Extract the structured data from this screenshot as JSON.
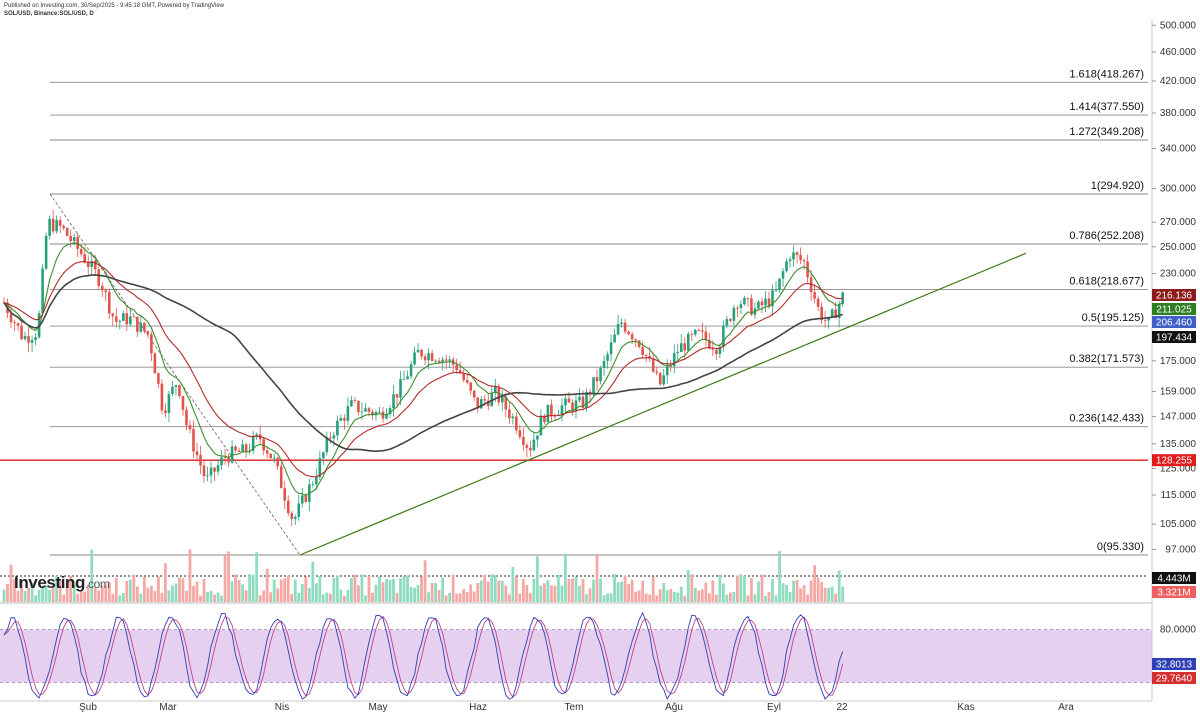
{
  "header": {
    "published": "Published on Investing.com, 30/Sep/2025 - 9:45:18 GMT, Powered by TradingView",
    "symbol": "SOL/USD, Binance:SOL/USD, D"
  },
  "logo": {
    "main": "Investing",
    "suffix": ".com"
  },
  "chart_data": {
    "type": "candlestick",
    "title": "",
    "price_axis": {
      "scale": "log",
      "range": [
        90,
        520
      ],
      "ticks": [
        {
          "value": 500,
          "label": "500.000"
        },
        {
          "value": 460,
          "label": "460.000"
        },
        {
          "value": 420,
          "label": "420.000"
        },
        {
          "value": 380,
          "label": "380.000"
        },
        {
          "value": 340,
          "label": "340.000"
        },
        {
          "value": 300,
          "label": "300.000"
        },
        {
          "value": 270,
          "label": "270.000"
        },
        {
          "value": 250,
          "label": "250.000"
        },
        {
          "value": 230,
          "label": "230.000"
        },
        {
          "value": 175,
          "label": "175.000"
        },
        {
          "value": 159,
          "label": "159.000"
        },
        {
          "value": 147,
          "label": "147.000"
        },
        {
          "value": 135,
          "label": "135.000"
        },
        {
          "value": 125,
          "label": "125.000"
        },
        {
          "value": 115,
          "label": "115.000"
        },
        {
          "value": 105,
          "label": "105.000"
        },
        {
          "value": 97,
          "label": "97.000"
        }
      ]
    },
    "time_axis": {
      "labels": [
        "Şub",
        "Mar",
        "Nis",
        "May",
        "Haz",
        "Tem",
        "Ağu",
        "Eyl",
        "22",
        "Kas",
        "Ara"
      ],
      "grid": false
    },
    "fibonacci_levels": [
      {
        "ratio": 1.618,
        "value": 418.267,
        "label": "1.618(418.267)"
      },
      {
        "ratio": 1.414,
        "value": 377.55,
        "label": "1.414(377.550)"
      },
      {
        "ratio": 1.272,
        "value": 349.208,
        "label": "1.272(349.208)"
      },
      {
        "ratio": 1,
        "value": 294.92,
        "label": "1(294.920)"
      },
      {
        "ratio": 0.786,
        "value": 252.208,
        "label": "0.786(252.208)"
      },
      {
        "ratio": 0.618,
        "value": 218.677,
        "label": "0.618(218.677)"
      },
      {
        "ratio": 0.5,
        "value": 195.125,
        "label": "0.5(195.125)"
      },
      {
        "ratio": 0.382,
        "value": 171.573,
        "label": "0.382(171.573)"
      },
      {
        "ratio": 0.236,
        "value": 142.433,
        "label": "0.236(142.433)"
      },
      {
        "ratio": 0,
        "value": 95.33,
        "label": "0(95.330)"
      }
    ],
    "horizontal_line": {
      "value": 128.255,
      "color": "#e01b1b"
    },
    "trendline": {
      "color": "#3e7a16",
      "from_value": 95.33,
      "to_value": 245
    },
    "price_tags": [
      {
        "value": 216.136,
        "label": "216.136",
        "color": "#8b1a1a"
      },
      {
        "value": 211.025,
        "label": "211.025",
        "color": "#2e7d22"
      },
      {
        "value": 206.46,
        "label": "206.460",
        "color": "#3f5fc7"
      },
      {
        "value": 197.434,
        "label": "197.434",
        "color": "#111111"
      },
      {
        "value": 128.255,
        "label": "128.255",
        "color": "#e01b1b"
      }
    ],
    "price_anchors": [
      {
        "t": 0.0,
        "p": 210
      },
      {
        "t": 0.02,
        "p": 188
      },
      {
        "t": 0.035,
        "p": 192
      },
      {
        "t": 0.045,
        "p": 270
      },
      {
        "t": 0.06,
        "p": 265
      },
      {
        "t": 0.08,
        "p": 245
      },
      {
        "t": 0.1,
        "p": 225
      },
      {
        "t": 0.115,
        "p": 198
      },
      {
        "t": 0.13,
        "p": 200
      },
      {
        "t": 0.15,
        "p": 190
      },
      {
        "t": 0.165,
        "p": 150
      },
      {
        "t": 0.18,
        "p": 165
      },
      {
        "t": 0.19,
        "p": 142
      },
      {
        "t": 0.21,
        "p": 120
      },
      {
        "t": 0.23,
        "p": 130
      },
      {
        "t": 0.25,
        "p": 132
      },
      {
        "t": 0.265,
        "p": 138
      },
      {
        "t": 0.28,
        "p": 128
      },
      {
        "t": 0.3,
        "p": 106
      },
      {
        "t": 0.32,
        "p": 120
      },
      {
        "t": 0.34,
        "p": 140
      },
      {
        "t": 0.36,
        "p": 152
      },
      {
        "t": 0.39,
        "p": 148
      },
      {
        "t": 0.41,
        "p": 160
      },
      {
        "t": 0.43,
        "p": 180
      },
      {
        "t": 0.45,
        "p": 178
      },
      {
        "t": 0.47,
        "p": 172
      },
      {
        "t": 0.49,
        "p": 152
      },
      {
        "t": 0.51,
        "p": 158
      },
      {
        "t": 0.53,
        "p": 145
      },
      {
        "t": 0.545,
        "p": 133
      },
      {
        "t": 0.56,
        "p": 148
      },
      {
        "t": 0.58,
        "p": 152
      },
      {
        "t": 0.6,
        "p": 153
      },
      {
        "t": 0.62,
        "p": 170
      },
      {
        "t": 0.64,
        "p": 198
      },
      {
        "t": 0.66,
        "p": 185
      },
      {
        "t": 0.68,
        "p": 162
      },
      {
        "t": 0.7,
        "p": 182
      },
      {
        "t": 0.72,
        "p": 190
      },
      {
        "t": 0.74,
        "p": 183
      },
      {
        "t": 0.76,
        "p": 212
      },
      {
        "t": 0.78,
        "p": 205
      },
      {
        "t": 0.8,
        "p": 215
      },
      {
        "t": 0.815,
        "p": 245
      },
      {
        "t": 0.83,
        "p": 238
      },
      {
        "t": 0.845,
        "p": 205
      },
      {
        "t": 0.855,
        "p": 196
      },
      {
        "t": 0.87,
        "p": 214
      }
    ],
    "volume": {
      "last_labels": [
        {
          "label": "4.443M",
          "color": "#111111"
        },
        {
          "label": "3.321M",
          "color": "#ef5f5f"
        }
      ]
    },
    "stochastic": {
      "range": [
        0,
        100
      ],
      "overbought": 80,
      "oversold": 20,
      "ticks": [
        {
          "value": 80,
          "label": "80.0000"
        }
      ],
      "last_values": [
        {
          "label": "32.8013",
          "color": "#2f3fb5"
        },
        {
          "label": "29.7640",
          "color": "#d32f2f"
        }
      ]
    },
    "colors": {
      "up": "#26a17b",
      "down": "#e0544c",
      "ema_fast": "#3e8e2e",
      "ema_mid": "#b32a2a",
      "ma_slow": "#444444",
      "vol_up": "#8fdcc0",
      "vol_down": "#f4a9a5",
      "stoch_band": "#e1c9ec",
      "stoch_k": "#2f3fb5",
      "stoch_d": "#c2408a"
    }
  }
}
